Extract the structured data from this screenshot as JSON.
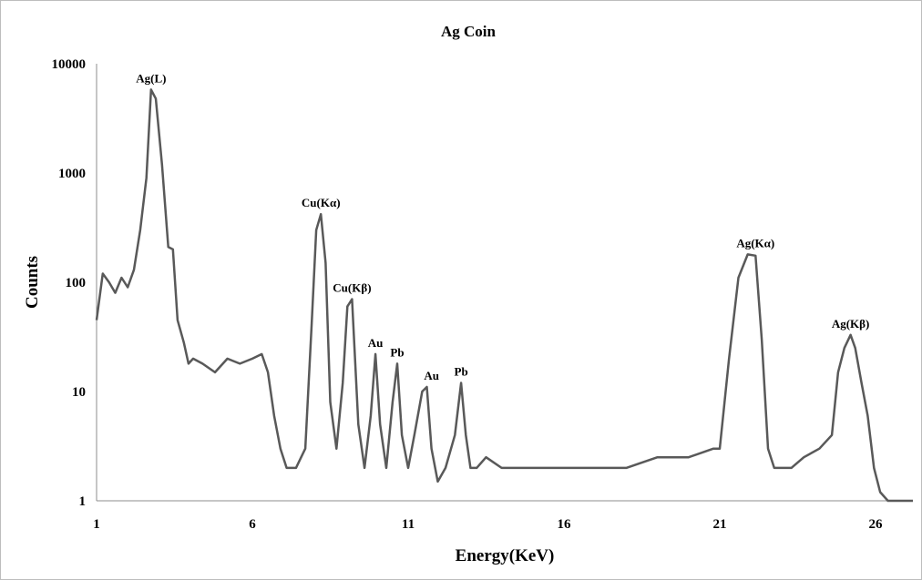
{
  "chart_data": {
    "type": "line",
    "title": "Ag Coin",
    "xlabel": "Energy(KeV)",
    "ylabel": "Counts",
    "xlim": [
      1,
      27.2
    ],
    "ylim": [
      1,
      10000
    ],
    "yscale": "log",
    "x_ticks": [
      1,
      6,
      11,
      16,
      21,
      26
    ],
    "y_ticks": [
      1,
      10,
      100,
      1000,
      10000
    ],
    "grid": false,
    "line_color": "#595959",
    "axis_color": "#8c8c8c",
    "series": [
      {
        "values_description": "spectrum",
        "x": [
          1.0,
          1.2,
          1.4,
          1.6,
          1.8,
          2.0,
          2.2,
          2.4,
          2.6,
          2.75,
          2.9,
          3.1,
          3.3,
          3.45,
          3.6,
          3.8,
          3.95,
          4.1,
          4.4,
          4.8,
          5.2,
          5.6,
          6.0,
          6.3,
          6.5,
          6.7,
          6.9,
          7.1,
          7.4,
          7.7,
          7.9,
          8.05,
          8.2,
          8.35,
          8.5,
          8.7,
          8.9,
          9.05,
          9.2,
          9.4,
          9.6,
          9.8,
          9.95,
          10.1,
          10.3,
          10.5,
          10.65,
          10.8,
          11.0,
          11.2,
          11.45,
          11.6,
          11.75,
          11.95,
          12.2,
          12.5,
          12.7,
          12.85,
          13.0,
          13.2,
          13.5,
          14.0,
          15.0,
          16.0,
          17.0,
          18.0,
          19.0,
          20.0,
          20.8,
          21.0,
          21.3,
          21.6,
          21.9,
          22.15,
          22.35,
          22.55,
          22.75,
          23.0,
          23.3,
          23.7,
          24.2,
          24.6,
          24.8,
          25.0,
          25.2,
          25.35,
          25.55,
          25.75,
          25.95,
          26.15,
          26.4,
          26.8,
          27.2
        ],
        "y": [
          45,
          120,
          100,
          80,
          110,
          90,
          130,
          300,
          900,
          5800,
          4800,
          1200,
          210,
          200,
          45,
          28,
          18,
          20,
          18,
          15,
          20,
          18,
          20,
          22,
          15,
          6,
          3,
          2,
          2,
          3,
          40,
          300,
          420,
          150,
          8,
          3,
          12,
          60,
          70,
          5,
          2,
          6,
          22,
          5,
          2,
          8,
          18,
          4,
          2,
          4,
          10,
          11,
          3,
          1.5,
          2,
          4,
          12,
          4,
          2,
          2,
          2.5,
          2,
          2,
          2,
          2,
          2,
          2.5,
          2.5,
          3,
          3,
          20,
          110,
          180,
          175,
          30,
          3,
          2,
          2,
          2,
          2.5,
          3,
          4,
          15,
          25,
          33,
          25,
          12,
          6,
          2,
          1.2,
          1,
          1,
          1
        ]
      }
    ],
    "annotations": [
      {
        "text": "Ag(L)",
        "x": 2.75,
        "y": 5800
      },
      {
        "text": "Cu(Kα)",
        "x": 8.2,
        "y": 420
      },
      {
        "text": "Cu(Kβ)",
        "x": 9.2,
        "y": 70
      },
      {
        "text": "Au",
        "x": 9.95,
        "y": 22
      },
      {
        "text": "Pb",
        "x": 10.65,
        "y": 18
      },
      {
        "text": "Au",
        "x": 11.75,
        "y": 11
      },
      {
        "text": "Pb",
        "x": 12.7,
        "y": 12
      },
      {
        "text": "Ag(Kα)",
        "x": 22.15,
        "y": 180
      },
      {
        "text": "Ag(Kβ)",
        "x": 25.2,
        "y": 33
      }
    ]
  }
}
